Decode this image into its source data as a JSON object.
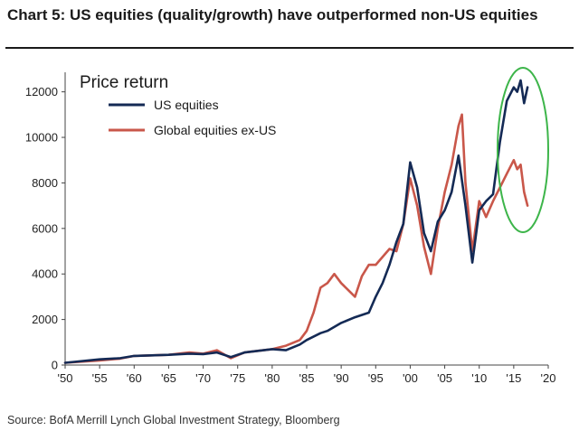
{
  "header": {
    "title": "Chart 5: US equities (quality/growth) have outperformed non-US equities",
    "source": "Source: BofA Merrill Lynch Global Investment Strategy, Bloomberg"
  },
  "colors": {
    "us": "#142a55",
    "global": "#c9574a",
    "highlight": "#3db54a",
    "axis": "#444444"
  },
  "chart_data": {
    "type": "line",
    "title": "Price return",
    "xlabel": "",
    "ylabel": "",
    "xlim": [
      1950,
      2020
    ],
    "ylim": [
      0,
      12700
    ],
    "y_ticks": [
      0,
      2000,
      4000,
      6000,
      8000,
      10000,
      12000
    ],
    "x_ticks": [
      {
        "value": 1950,
        "label": "'50"
      },
      {
        "value": 1955,
        "label": "'55"
      },
      {
        "value": 1960,
        "label": "'60"
      },
      {
        "value": 1965,
        "label": "'65"
      },
      {
        "value": 1970,
        "label": "'70"
      },
      {
        "value": 1975,
        "label": "'75"
      },
      {
        "value": 1980,
        "label": "'80"
      },
      {
        "value": 1985,
        "label": "'85"
      },
      {
        "value": 1990,
        "label": "'90"
      },
      {
        "value": 1995,
        "label": "'95"
      },
      {
        "value": 2000,
        "label": "'00"
      },
      {
        "value": 2005,
        "label": "'05"
      },
      {
        "value": 2010,
        "label": "'10"
      },
      {
        "value": 2015,
        "label": "'15"
      },
      {
        "value": 2020,
        "label": "'20"
      }
    ],
    "legend_position": "top-left",
    "annotation": "green ellipse around 2013-2017 divergence",
    "series": [
      {
        "name": "US equities",
        "color": "#142a55",
        "x": [
          1950,
          1955,
          1958,
          1960,
          1965,
          1968,
          1970,
          1972,
          1974,
          1976,
          1980,
          1982,
          1984,
          1985,
          1987,
          1988,
          1990,
          1992,
          1994,
          1995,
          1996,
          1997,
          1998,
          1999,
          2000,
          2001,
          2002,
          2003,
          2004,
          2005,
          2006,
          2007,
          2008,
          2009,
          2010,
          2011,
          2012,
          2013,
          2014,
          2015,
          2015.5,
          2016,
          2016.5,
          2017
        ],
        "y": [
          100,
          250,
          300,
          400,
          450,
          500,
          480,
          550,
          350,
          550,
          700,
          650,
          900,
          1100,
          1400,
          1500,
          1850,
          2100,
          2300,
          3000,
          3600,
          4400,
          5400,
          6200,
          8900,
          7800,
          5800,
          5000,
          6300,
          6800,
          7600,
          9200,
          7000,
          4500,
          6800,
          7200,
          7500,
          9800,
          11600,
          12200,
          12000,
          12500,
          11500,
          12200
        ]
      },
      {
        "name": "Global equities ex-US",
        "color": "#c9574a",
        "x": [
          1950,
          1955,
          1958,
          1960,
          1965,
          1968,
          1970,
          1972,
          1974,
          1976,
          1980,
          1982,
          1984,
          1985,
          1986,
          1987,
          1988,
          1989,
          1990,
          1991,
          1992,
          1993,
          1994,
          1995,
          1997,
          1998,
          1999,
          2000,
          2001,
          2002,
          2003,
          2004,
          2005,
          2006,
          2007,
          2007.5,
          2008,
          2009,
          2010,
          2011,
          2012,
          2013,
          2014,
          2015,
          2015.5,
          2016,
          2016.5,
          2017
        ],
        "y": [
          100,
          200,
          280,
          400,
          450,
          550,
          500,
          650,
          300,
          550,
          700,
          850,
          1100,
          1500,
          2300,
          3400,
          3600,
          4000,
          3600,
          3300,
          3000,
          3900,
          4400,
          4400,
          5100,
          5000,
          6200,
          8200,
          7000,
          5200,
          4000,
          6000,
          7600,
          8800,
          10500,
          11000,
          8000,
          5000,
          7200,
          6500,
          7200,
          7800,
          8400,
          9000,
          8600,
          8800,
          7600,
          7000
        ]
      }
    ]
  }
}
